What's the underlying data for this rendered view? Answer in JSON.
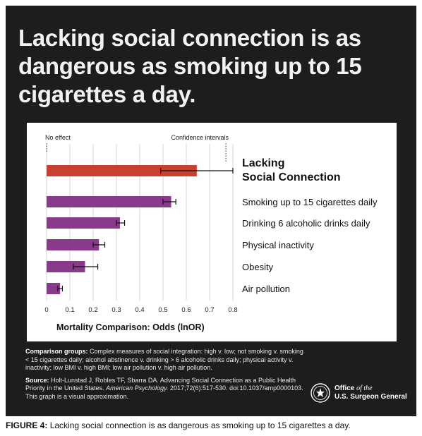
{
  "title": "Lacking social connection is as dangerous as smoking up to 15 cigarettes a day.",
  "chart_data": {
    "type": "bar",
    "orientation": "horizontal",
    "xlabel": "Mortality Comparison: Odds (lnOR)",
    "xlim": [
      0,
      0.8
    ],
    "xticks": [
      "0",
      "0.1",
      "0.2",
      "0.3",
      "0.4",
      "0.5",
      "0.6",
      "0.7",
      "0.8"
    ],
    "grid": true,
    "annotations": {
      "no_effect": "No effect",
      "confidence_intervals": "Confidence intervals"
    },
    "categories": [
      {
        "label_line1": "Lacking",
        "label_line2": "Social Connection",
        "value": 0.645,
        "ci": [
          0.49,
          0.8
        ],
        "color": "#c8402e",
        "highlight": true
      },
      {
        "label_line1": "Smoking up to 15 cigarettes daily",
        "label_line2": "",
        "value": 0.535,
        "ci": [
          0.5,
          0.555
        ],
        "color": "#8a3a8a",
        "highlight": false
      },
      {
        "label_line1": "Drinking 6 alcoholic drinks daily",
        "label_line2": "",
        "value": 0.315,
        "ci": [
          0.3,
          0.335
        ],
        "color": "#8a3a8a",
        "highlight": false
      },
      {
        "label_line1": "Physical inactivity",
        "label_line2": "",
        "value": 0.225,
        "ci": [
          0.2,
          0.25
        ],
        "color": "#8a3a8a",
        "highlight": false
      },
      {
        "label_line1": "Obesity",
        "label_line2": "",
        "value": 0.165,
        "ci": [
          0.115,
          0.22
        ],
        "color": "#8a3a8a",
        "highlight": false
      },
      {
        "label_line1": "Air pollution",
        "label_line2": "",
        "value": 0.058,
        "ci": [
          0.048,
          0.068
        ],
        "color": "#8a3a8a",
        "highlight": false
      }
    ]
  },
  "notes": {
    "comparison_label": "Comparison groups:",
    "comparison_text": "Complex measures of social integration: high v. low; not smoking v. smoking < 15 cigarettes daily; alcohol abstinence v. drinking > 6 alcoholic drinks daily; physical activity v. inactivity; low BMI v. high BMI; low air pollution v. high air pollution.",
    "source_label": "Source:",
    "source_text_1": "Holt-Lunstad J, Robles TF, Sbarra DA. Advancing Social Connection as a Public Health Priority in the United States.",
    "source_journal": "American Psychology.",
    "source_text_2": "2017;72(6):517-530. doi:10.1037/amp0000103. This graph is a visual approximation."
  },
  "branding": {
    "line1_a": "Office",
    "line1_b": "of the",
    "line2": "U.S. Surgeon General"
  },
  "caption": {
    "label": "FIGURE 4:",
    "text": "Lacking social connection is as dangerous as smoking up to 15 cigarettes a day."
  }
}
